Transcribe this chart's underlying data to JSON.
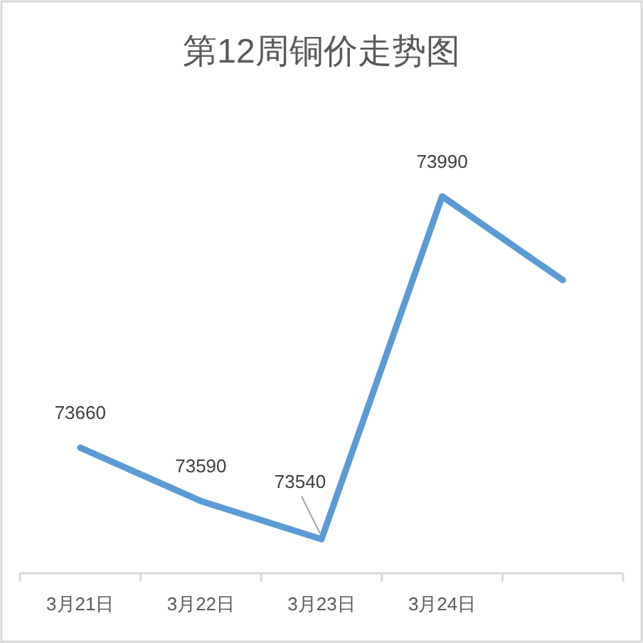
{
  "chart_data": {
    "type": "line",
    "title": "第12周铜价走势图",
    "categories": [
      "3月21日",
      "3月22日",
      "3月23日",
      "3月24日",
      null
    ],
    "series": [
      {
        "color": "#5b9bd5",
        "values": [
          73660,
          73590,
          73540,
          73990,
          73880
        ],
        "value_labels": [
          "73660",
          "73590",
          "73540",
          "73990",
          null
        ]
      }
    ],
    "tick_labels": "x"
  }
}
